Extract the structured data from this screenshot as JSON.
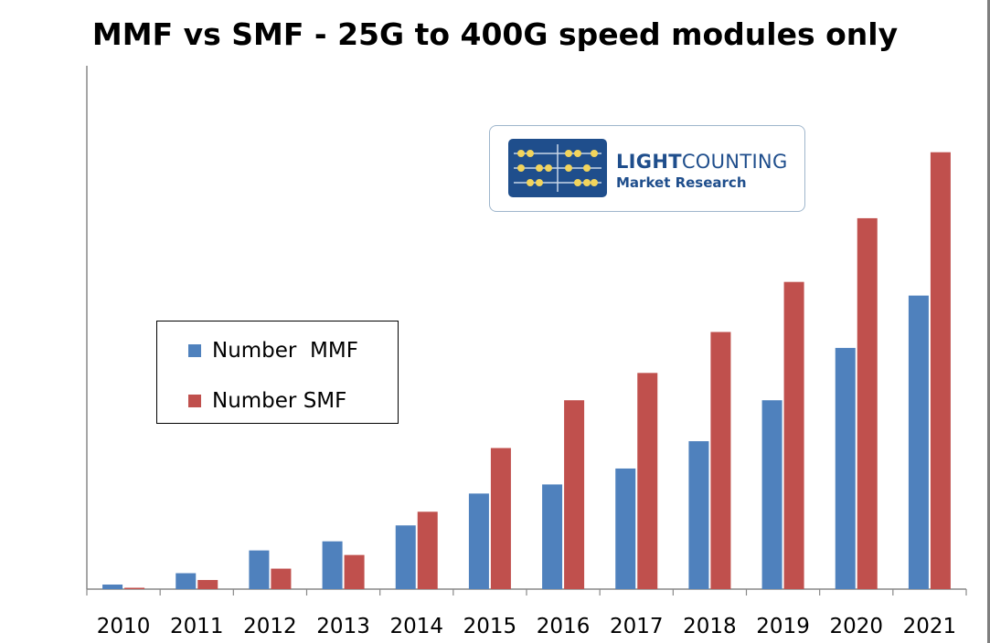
{
  "chart_data": {
    "type": "bar",
    "title": "MMF vs SMF - 25G to 400G speed modules only",
    "xlabel": "",
    "ylabel": "",
    "categories": [
      "2010",
      "2011",
      "2012",
      "2013",
      "2014",
      "2015",
      "2016",
      "2017",
      "2018",
      "2019",
      "2020",
      "2021"
    ],
    "series": [
      {
        "name": "Number  MMF",
        "color": "#4f81bd",
        "values": [
          1,
          3.5,
          8.5,
          10.5,
          14,
          21,
          23,
          26.5,
          32.5,
          41.5,
          53,
          64.5
        ]
      },
      {
        "name": "Number SMF",
        "color": "#c0504d",
        "values": [
          0.3,
          2,
          4.5,
          7.5,
          17,
          31,
          41.5,
          47.5,
          56.5,
          67.5,
          81.5,
          96
        ]
      }
    ],
    "ylim": [
      0,
      115
    ],
    "grid": false,
    "legend_position": "middle-left"
  },
  "logo": {
    "name_part1": "LIGHT",
    "name_part2": "COUNTING",
    "tagline": "Market Research",
    "icon": "abacus-icon"
  }
}
